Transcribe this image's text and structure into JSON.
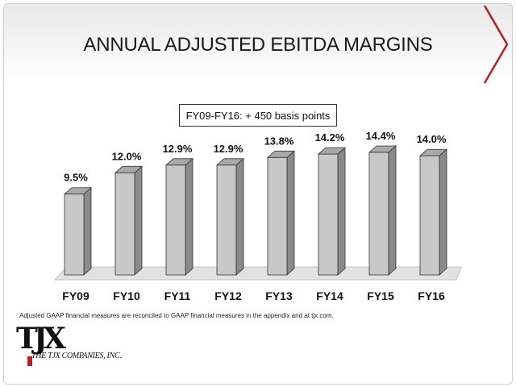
{
  "slide": {
    "title": "ANNUAL ADJUSTED EBITDA MARGINS",
    "annotation": "FY09-FY16: + 450 basis points",
    "footnote": "Adjusted GAAP financial measures are reconciled to GAAP financial measures in the appendix and at tjx.com.",
    "logo": {
      "mark": "TJX",
      "company": "THE TJX COMPANIES, INC."
    },
    "colors": {
      "accent": "#b3202a",
      "bar_front": "#c8c8c8",
      "bar_side": "#8a8a8a",
      "bar_top": "#a9a9a9",
      "floor": "#e2e2e2"
    }
  },
  "chart_data": {
    "type": "bar",
    "title": "",
    "xlabel": "",
    "ylabel": "",
    "categories": [
      "FY09",
      "FY10",
      "FY11",
      "FY12",
      "FY13",
      "FY14",
      "FY15",
      "FY16"
    ],
    "values": [
      9.5,
      12.0,
      12.9,
      12.9,
      13.8,
      14.2,
      14.4,
      14.0
    ],
    "data_labels": [
      "9.5%",
      "12.0%",
      "12.9%",
      "12.9%",
      "13.8%",
      "14.2%",
      "14.4%",
      "14.0%"
    ],
    "ylim": [
      0,
      15
    ],
    "style": "3d-bar",
    "grid": false,
    "legend": "none"
  }
}
